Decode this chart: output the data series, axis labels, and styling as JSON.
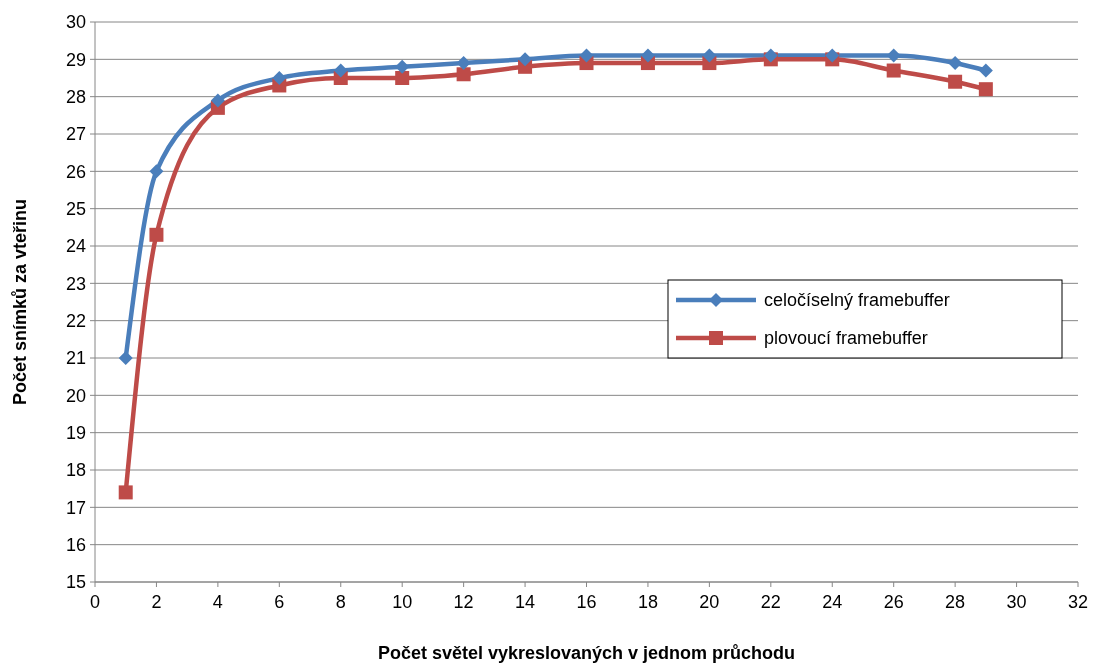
{
  "chart_data": {
    "type": "line",
    "xlabel": "Počet světel vykreslovaných v jednom průchodu",
    "ylabel": "Počet snímků za vteřinu",
    "x": [
      1,
      2,
      4,
      6,
      8,
      10,
      12,
      14,
      16,
      18,
      20,
      22,
      24,
      26,
      28,
      29
    ],
    "series": [
      {
        "name": "celočíselný framebuffer",
        "color": "#4a7ebb",
        "marker": "diamond",
        "values": [
          21,
          26,
          27.9,
          28.5,
          28.7,
          28.8,
          28.9,
          29,
          29.1,
          29.1,
          29.1,
          29.1,
          29.1,
          29.1,
          28.9,
          28.7
        ]
      },
      {
        "name": "plovoucí framebuffer",
        "color": "#be4b48",
        "marker": "square",
        "values": [
          17.4,
          24.3,
          27.7,
          28.3,
          28.5,
          28.5,
          28.6,
          28.8,
          28.9,
          28.9,
          28.9,
          29,
          29,
          28.7,
          28.4,
          28.2
        ]
      }
    ],
    "xlim": [
      0,
      32
    ],
    "xticks": [
      0,
      2,
      4,
      6,
      8,
      10,
      12,
      14,
      16,
      18,
      20,
      22,
      24,
      26,
      28,
      30,
      32
    ],
    "ylim": [
      15,
      30
    ],
    "yticks": [
      15,
      16,
      17,
      18,
      19,
      20,
      21,
      22,
      23,
      24,
      25,
      26,
      27,
      28,
      29,
      30
    ],
    "grid": "y",
    "legend": "right",
    "line_style": "solid"
  }
}
